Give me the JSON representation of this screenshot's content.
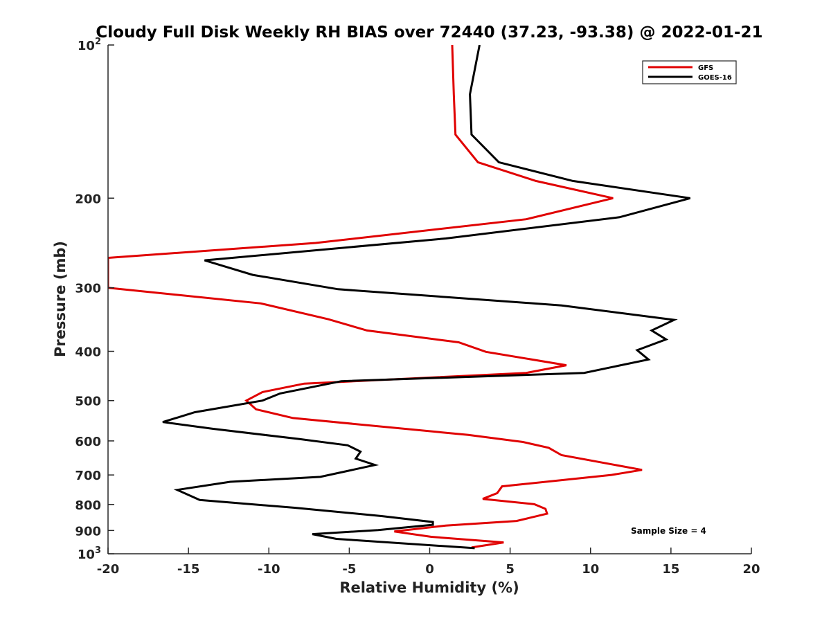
{
  "chart_data": {
    "type": "line",
    "title": "Cloudy Full Disk Weekly RH BIAS over 72440 (37.23, -93.38) @ 2022-01-21",
    "xlabel": "Relative Humidity (%)",
    "ylabel": "Pressure (mb)",
    "xlim": [
      -20,
      20
    ],
    "ylim": [
      100,
      1000
    ],
    "yscale": "log",
    "y_reversed": true,
    "xticks": [
      -20,
      -15,
      -10,
      -5,
      0,
      5,
      10,
      15,
      20
    ],
    "yticks": [
      {
        "value": 100,
        "label": "10",
        "sup": "2"
      },
      {
        "value": 200,
        "label": "200",
        "sup": ""
      },
      {
        "value": 300,
        "label": "300",
        "sup": ""
      },
      {
        "value": 400,
        "label": "400",
        "sup": ""
      },
      {
        "value": 500,
        "label": "500",
        "sup": ""
      },
      {
        "value": 600,
        "label": "600",
        "sup": ""
      },
      {
        "value": 700,
        "label": "700",
        "sup": ""
      },
      {
        "value": 800,
        "label": "800",
        "sup": ""
      },
      {
        "value": 900,
        "label": "900",
        "sup": ""
      },
      {
        "value": 1000,
        "label": "10",
        "sup": "3"
      }
    ],
    "grid": false,
    "legend_position": "top-right",
    "series": [
      {
        "name": "GFS",
        "color": "#e00000",
        "points": [
          [
            1.4,
            100
          ],
          [
            1.5,
            125
          ],
          [
            1.6,
            150
          ],
          [
            3.0,
            170
          ],
          [
            6.6,
            185
          ],
          [
            11.4,
            200
          ],
          [
            6.0,
            220
          ],
          [
            -7.1,
            245
          ],
          [
            -20.0,
            262
          ],
          [
            -20.0,
            300
          ],
          [
            -10.5,
            322
          ],
          [
            -6.3,
            346
          ],
          [
            -3.9,
            364
          ],
          [
            1.8,
            384
          ],
          [
            3.5,
            401
          ],
          [
            8.5,
            426
          ],
          [
            6.0,
            441
          ],
          [
            -7.8,
            463
          ],
          [
            -10.4,
            481
          ],
          [
            -11.4,
            500
          ],
          [
            -10.8,
            520
          ],
          [
            -8.5,
            541
          ],
          [
            2.4,
            584
          ],
          [
            5.8,
            603
          ],
          [
            7.4,
            619
          ],
          [
            8.2,
            640
          ],
          [
            13.2,
            684
          ],
          [
            11.3,
            700
          ],
          [
            4.5,
            737
          ],
          [
            4.2,
            760
          ],
          [
            3.3,
            780
          ],
          [
            6.5,
            799
          ],
          [
            7.2,
            816
          ],
          [
            7.3,
            834
          ],
          [
            5.4,
            862
          ],
          [
            1.0,
            880
          ],
          [
            -2.2,
            904
          ],
          [
            0.1,
            926
          ],
          [
            4.6,
            950
          ],
          [
            2.6,
            972
          ]
        ]
      },
      {
        "name": "GOES-16",
        "color": "#000000",
        "points": [
          [
            3.1,
            100
          ],
          [
            2.5,
            125
          ],
          [
            2.6,
            150
          ],
          [
            4.3,
            170
          ],
          [
            8.9,
            185
          ],
          [
            16.2,
            200
          ],
          [
            11.8,
            218
          ],
          [
            1.0,
            240
          ],
          [
            -14.0,
            265
          ],
          [
            -11.0,
            283
          ],
          [
            -5.7,
            302
          ],
          [
            8.2,
            325
          ],
          [
            15.2,
            347
          ],
          [
            13.8,
            364
          ],
          [
            14.7,
            379
          ],
          [
            12.9,
            398
          ],
          [
            13.6,
            415
          ],
          [
            9.6,
            441
          ],
          [
            -5.5,
            458
          ],
          [
            -9.3,
            484
          ],
          [
            -10.4,
            500
          ],
          [
            -14.6,
            527
          ],
          [
            -16.6,
            551
          ],
          [
            -13.5,
            568
          ],
          [
            -8.1,
            595
          ],
          [
            -5.1,
            612
          ],
          [
            -4.3,
            630
          ],
          [
            -4.6,
            650
          ],
          [
            -3.4,
            669
          ],
          [
            -6.8,
            706
          ],
          [
            -12.4,
            722
          ],
          [
            -15.7,
            749
          ],
          [
            -14.3,
            784
          ],
          [
            -8.4,
            812
          ],
          [
            -3.0,
            843
          ],
          [
            0.2,
            866
          ],
          [
            0.2,
            877
          ],
          [
            -3.2,
            898
          ],
          [
            -7.3,
            915
          ],
          [
            -5.8,
            935
          ],
          [
            2.8,
            975
          ]
        ]
      }
    ],
    "annotation": "Sample Size = 4"
  }
}
